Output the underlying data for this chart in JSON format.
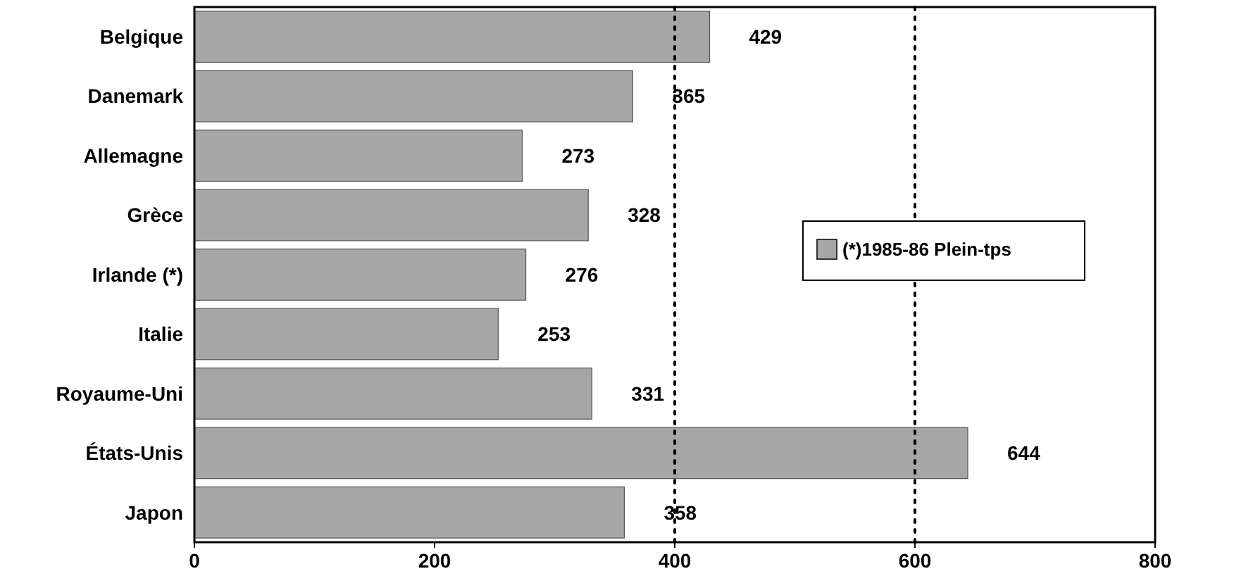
{
  "chart_data": {
    "type": "bar",
    "orientation": "horizontal",
    "categories": [
      "Belgique",
      "Danemark",
      "Allemagne",
      "Grèce",
      "Irlande (*)",
      "Italie",
      "Royaume-Uni",
      "États-Unis",
      "Japon"
    ],
    "series": [
      {
        "name": "(*)1985-86 Plein-tps",
        "color": "#a6a6a6",
        "values": [
          429,
          365,
          273,
          328,
          276,
          253,
          331,
          644,
          358
        ]
      }
    ],
    "data_labels": true,
    "xlim": [
      0,
      800
    ],
    "xticks": [
      0,
      200,
      400,
      600,
      800
    ],
    "legend": "right",
    "ref_lines": [
      {
        "axis": "x",
        "value": 400,
        "line_style": "dotted",
        "color": "#000000"
      },
      {
        "axis": "x",
        "value": 600,
        "line_style": "dotted",
        "color": "#000000"
      }
    ]
  }
}
